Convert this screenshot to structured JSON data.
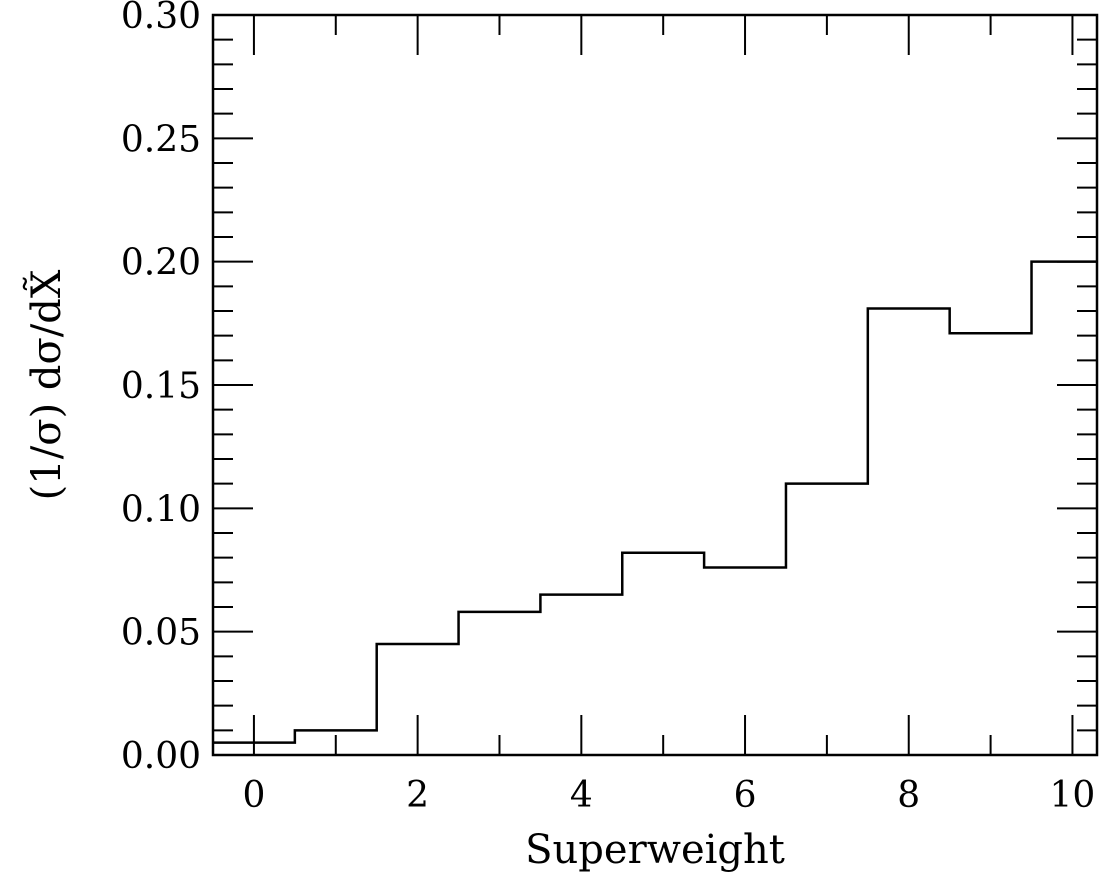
{
  "chart_data": {
    "type": "histogram",
    "title": "",
    "xlabel": "Superweight",
    "ylabel": "(1/σ) dσ/dX̃",
    "xlim": [
      -0.5,
      10.3
    ],
    "ylim": [
      0,
      0.3
    ],
    "x_ticks": [
      0,
      2,
      4,
      6,
      8,
      10
    ],
    "x_tick_labels": [
      "0",
      "2",
      "4",
      "6",
      "8",
      "10"
    ],
    "y_ticks": [
      0,
      0.05,
      0.1,
      0.15,
      0.2,
      0.25,
      0.3
    ],
    "y_tick_labels": [
      "0.00",
      "0.05",
      "0.10",
      "0.15",
      "0.20",
      "0.25",
      "0.30"
    ],
    "bin_width": 1,
    "bin_centers": [
      0,
      1,
      2,
      3,
      4,
      5,
      6,
      7,
      8,
      9,
      10
    ],
    "values": [
      0.005,
      0.01,
      0.045,
      0.058,
      0.065,
      0.082,
      0.076,
      0.11,
      0.181,
      0.171,
      0.2
    ],
    "grid": false,
    "line_color": "#000000"
  }
}
